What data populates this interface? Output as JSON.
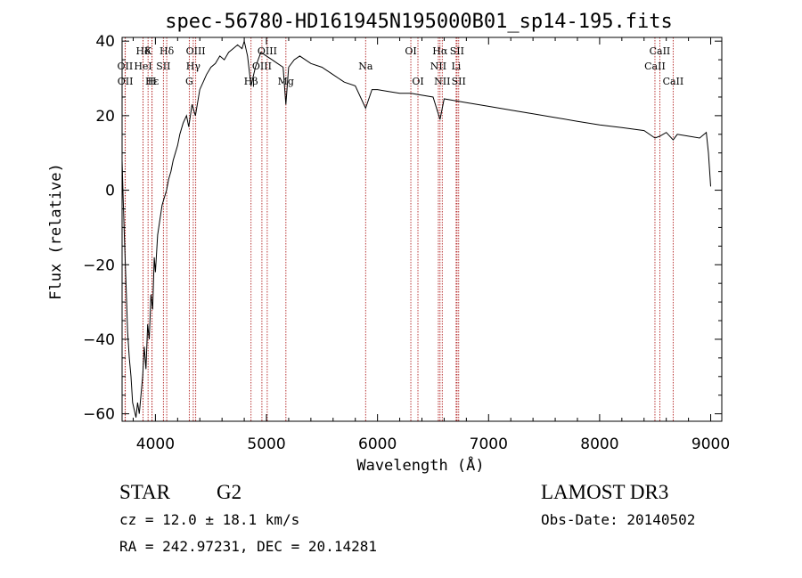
{
  "chart_data": {
    "type": "line",
    "title": "spec-56780-HD161945N195000B01_sp14-195.fits",
    "xlabel": "Wavelength (Å)",
    "ylabel": "Flux (relative)",
    "xlim": [
      3700,
      9100
    ],
    "ylim": [
      -62,
      41
    ],
    "xticks": [
      4000,
      5000,
      6000,
      7000,
      8000,
      9000
    ],
    "yticks": [
      -60,
      -40,
      -20,
      0,
      20,
      40
    ],
    "series": [
      {
        "name": "flux",
        "x": [
          3700,
          3710,
          3720,
          3735,
          3750,
          3765,
          3780,
          3795,
          3810,
          3825,
          3840,
          3855,
          3870,
          3885,
          3900,
          3915,
          3930,
          3945,
          3960,
          3975,
          3990,
          4000,
          4020,
          4040,
          4060,
          4080,
          4100,
          4120,
          4140,
          4160,
          4180,
          4200,
          4220,
          4250,
          4280,
          4300,
          4330,
          4360,
          4400,
          4430,
          4460,
          4500,
          4540,
          4580,
          4620,
          4660,
          4700,
          4740,
          4780,
          4800,
          4830,
          4861,
          4900,
          4950,
          5000,
          5050,
          5100,
          5150,
          5175,
          5200,
          5250,
          5300,
          5400,
          5500,
          5600,
          5700,
          5800,
          5893,
          5950,
          6000,
          6100,
          6200,
          6300,
          6400,
          6500,
          6563,
          6600,
          6700,
          6800,
          7000,
          7200,
          7400,
          7600,
          7800,
          8000,
          8200,
          8400,
          8498,
          8542,
          8600,
          8662,
          8700,
          8800,
          8900,
          8960,
          8980,
          9000
        ],
        "values": [
          8,
          -2,
          -12,
          -25,
          -38,
          -45,
          -50,
          -57,
          -59,
          -61,
          -57,
          -60,
          -55,
          -50,
          -42,
          -48,
          -36,
          -40,
          -28,
          -32,
          -18,
          -22,
          -12,
          -8,
          -4,
          -2,
          0,
          3,
          5,
          8,
          10,
          12,
          15,
          18,
          20,
          17,
          23,
          20,
          27,
          29,
          31,
          33,
          34,
          36,
          35,
          37,
          38,
          39,
          38,
          40,
          36,
          28,
          33,
          37,
          36,
          35,
          34,
          33,
          23,
          33,
          35,
          36,
          34,
          33,
          31,
          29,
          28,
          22,
          27,
          27,
          26.5,
          26,
          26,
          25.5,
          25,
          19,
          24.5,
          24,
          23.5,
          22.5,
          21.5,
          20.5,
          19.5,
          18.5,
          17.5,
          16.8,
          16,
          14,
          14.5,
          15.5,
          13.5,
          15,
          14.5,
          14,
          15.5,
          10,
          1
        ]
      }
    ],
    "spectral_lines": [
      {
        "label": "Hδ",
        "x": 3889,
        "row": 1
      },
      {
        "label": "OII",
        "x": 3727,
        "row": 2
      },
      {
        "label": "OII",
        "x": 3729,
        "row": 3
      },
      {
        "label": "K",
        "x": 3934,
        "row": 1
      },
      {
        "label": "HeI",
        "x": 3889,
        "row": 2
      },
      {
        "label": "Hε",
        "x": 3970,
        "row": 3
      },
      {
        "label": "Hδ",
        "x": 4102,
        "row": 1
      },
      {
        "label": "SII",
        "x": 4072,
        "row": 2
      },
      {
        "label": "H",
        "x": 3969,
        "row": 3
      },
      {
        "label": "OIII",
        "x": 4363,
        "row": 1
      },
      {
        "label": "Hγ",
        "x": 4341,
        "row": 2
      },
      {
        "label": "G",
        "x": 4305,
        "row": 3
      },
      {
        "label": "OIII",
        "x": 5007,
        "row": 1
      },
      {
        "label": "OIII",
        "x": 4959,
        "row": 2
      },
      {
        "label": "Hβ",
        "x": 4861,
        "row": 3
      },
      {
        "label": "Mg",
        "x": 5175,
        "row": 3
      },
      {
        "label": "Na",
        "x": 5893,
        "row": 2
      },
      {
        "label": "OI",
        "x": 6300,
        "row": 1
      },
      {
        "label": "OI",
        "x": 6364,
        "row": 3
      },
      {
        "label": "Hα",
        "x": 6563,
        "row": 1
      },
      {
        "label": "NII",
        "x": 6548,
        "row": 2
      },
      {
        "label": "NII",
        "x": 6583,
        "row": 3
      },
      {
        "label": "SII",
        "x": 6716,
        "row": 1
      },
      {
        "label": "Li",
        "x": 6708,
        "row": 2
      },
      {
        "label": "SII",
        "x": 6731,
        "row": 3
      },
      {
        "label": "CaII",
        "x": 8542,
        "row": 1
      },
      {
        "label": "CaII",
        "x": 8498,
        "row": 2
      },
      {
        "label": "CaII",
        "x": 8662,
        "row": 3
      }
    ],
    "colors": {
      "spectrum": "#000000",
      "line_markers": "#b22222"
    }
  },
  "info": {
    "class_label": "STAR",
    "subclass": "G2",
    "survey": "LAMOST DR3",
    "cz_text": "cz = 12.0 ± 18.1 km/s",
    "obs_date_text": "Obs-Date: 20140502",
    "coords_text": "RA = 242.97231, DEC =  20.14281"
  }
}
